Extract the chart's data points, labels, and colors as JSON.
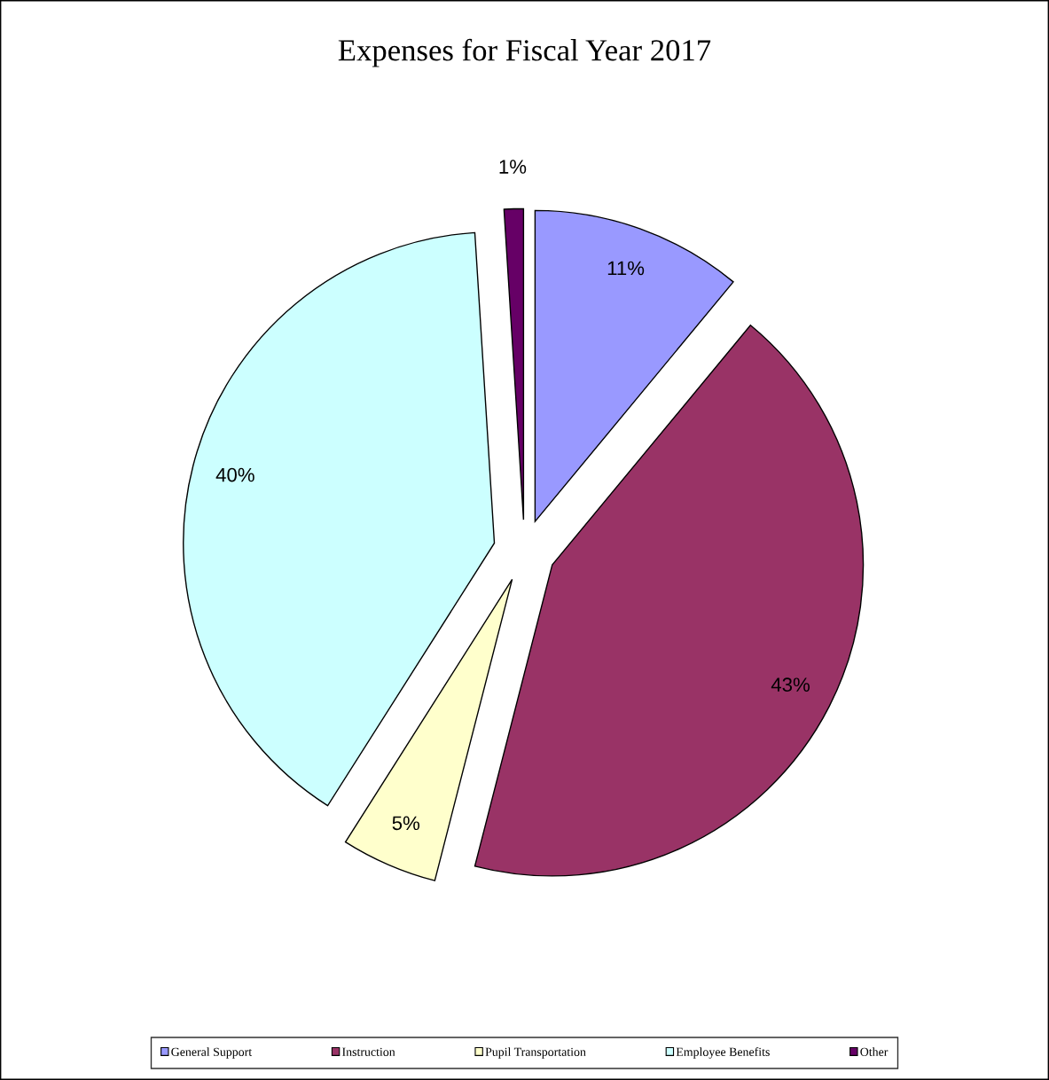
{
  "chart_data": {
    "type": "pie",
    "title": "Expenses for Fiscal Year 2017",
    "categories": [
      "General Support",
      "Instruction",
      "Pupil Transportation",
      "Employee Benefits",
      "Other"
    ],
    "values": [
      11,
      43,
      5,
      40,
      1
    ],
    "colors": [
      "#9999ff",
      "#993366",
      "#ffffcc",
      "#ccffff",
      "#660066"
    ],
    "value_labels": [
      "11%",
      "43%",
      "5%",
      "40%",
      "1%"
    ],
    "legend": "bottom"
  }
}
